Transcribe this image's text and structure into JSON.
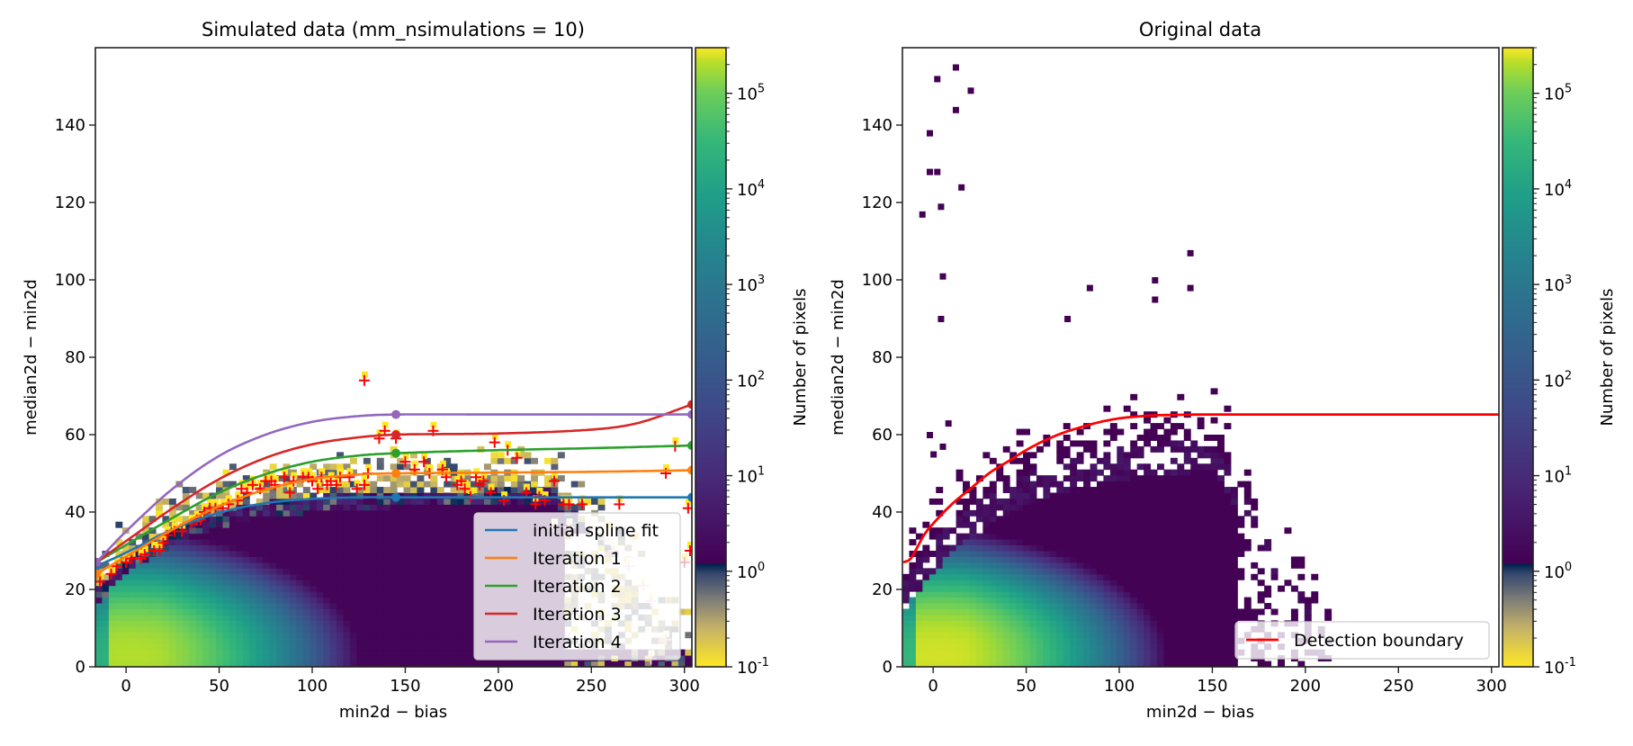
{
  "chart_data": [
    {
      "type": "heatmap",
      "title": "Simulated data (mm_nsimulations = 10)",
      "xlabel": "min2d − bias",
      "ylabel": "median2d − min2d",
      "xlim": [
        -16.5,
        304
      ],
      "ylim": [
        0,
        160
      ],
      "xticks": [
        0,
        50,
        100,
        150,
        200,
        250,
        300
      ],
      "yticks": [
        0,
        20,
        40,
        60,
        80,
        100,
        120,
        140
      ],
      "colorbar": {
        "label": "Number of pixels",
        "scale": "log",
        "range": [
          0.1,
          300000
        ],
        "ticks": [
          "10^-1",
          "10^0",
          "10^1",
          "10^2",
          "10^3",
          "10^4",
          "10^5"
        ],
        "colormap": "viridis with cividis-like low end (<1)"
      },
      "series": [
        {
          "name": "initial spline fit",
          "color": "#1f77b4",
          "knots_x": [
            -16,
            145,
            304
          ],
          "knots_y": [
            26,
            43.8,
            43.8
          ],
          "x": [
            -16,
            0,
            25,
            50,
            75,
            100,
            125,
            145,
            200,
            250,
            304
          ],
          "y": [
            26,
            29.5,
            35.5,
            39.8,
            42.3,
            43.4,
            43.8,
            43.8,
            43.8,
            43.8,
            43.8
          ]
        },
        {
          "name": "Iteration 1",
          "color": "#ff7f0e",
          "knots_x": [
            -16,
            145,
            304
          ],
          "knots_y": [
            24,
            50,
            50.8
          ],
          "x": [
            -16,
            0,
            25,
            50,
            75,
            100,
            125,
            145,
            200,
            250,
            304
          ],
          "y": [
            24,
            28.5,
            35.5,
            41.5,
            45.8,
            48.5,
            49.7,
            50,
            50.2,
            50.4,
            50.8
          ]
        },
        {
          "name": "Iteration 2",
          "color": "#2ca02c",
          "knots_x": [
            -16,
            145,
            304
          ],
          "knots_y": [
            27,
            55.2,
            57.2
          ],
          "x": [
            -16,
            0,
            25,
            50,
            75,
            100,
            125,
            145,
            200,
            250,
            304
          ],
          "y": [
            27,
            31.5,
            38.5,
            45,
            49.8,
            53,
            54.6,
            55.2,
            56,
            56.5,
            57.2
          ]
        },
        {
          "name": "Iteration 3",
          "color": "#d62728",
          "knots_x": [
            -16,
            145,
            304
          ],
          "knots_y": [
            27,
            60,
            67.8
          ],
          "x": [
            -16,
            0,
            25,
            50,
            75,
            100,
            125,
            145,
            200,
            250,
            275,
            304
          ],
          "y": [
            27,
            32.5,
            41,
            48.5,
            54,
            57.5,
            59.3,
            60,
            60.3,
            61.3,
            63,
            67.8
          ]
        },
        {
          "name": "Iteration 4",
          "color": "#9467bd",
          "knots_x": [
            -16,
            145,
            304
          ],
          "knots_y": [
            27,
            65.2,
            65.2
          ],
          "x": [
            -16,
            0,
            25,
            50,
            75,
            100,
            125,
            145,
            200,
            250,
            304
          ],
          "y": [
            27,
            35,
            46,
            54.5,
            60,
            63.3,
            64.8,
            65.2,
            65.2,
            65.2,
            65.2
          ]
        }
      ],
      "markers": {
        "symbol": "+",
        "color": "#ff0000",
        "points": [
          [
            -14,
            22
          ],
          [
            -8,
            24
          ],
          [
            -5,
            26
          ],
          [
            0,
            27
          ],
          [
            3,
            28
          ],
          [
            8,
            28
          ],
          [
            10,
            29
          ],
          [
            15,
            30
          ],
          [
            18,
            30
          ],
          [
            20,
            32
          ],
          [
            22,
            34
          ],
          [
            26,
            35
          ],
          [
            30,
            35
          ],
          [
            35,
            37
          ],
          [
            38,
            38
          ],
          [
            40,
            38
          ],
          [
            42,
            40
          ],
          [
            45,
            41
          ],
          [
            48,
            41
          ],
          [
            52,
            41
          ],
          [
            55,
            42
          ],
          [
            60,
            43
          ],
          [
            62,
            46
          ],
          [
            65,
            45
          ],
          [
            68,
            47
          ],
          [
            72,
            46
          ],
          [
            75,
            48
          ],
          [
            78,
            48
          ],
          [
            80,
            47
          ],
          [
            85,
            49
          ],
          [
            88,
            45
          ],
          [
            90,
            48
          ],
          [
            95,
            49
          ],
          [
            98,
            49
          ],
          [
            100,
            48
          ],
          [
            103,
            46
          ],
          [
            105,
            49
          ],
          [
            108,
            47
          ],
          [
            110,
            48
          ],
          [
            113,
            47
          ],
          [
            115,
            49
          ],
          [
            120,
            49
          ],
          [
            124,
            46
          ],
          [
            128,
            47
          ],
          [
            130,
            50
          ],
          [
            136,
            59
          ],
          [
            139,
            61
          ],
          [
            145,
            59
          ],
          [
            150,
            53
          ],
          [
            155,
            51
          ],
          [
            160,
            53
          ],
          [
            163,
            50
          ],
          [
            165,
            61
          ],
          [
            170,
            51
          ],
          [
            172,
            49
          ],
          [
            178,
            47
          ],
          [
            180,
            48
          ],
          [
            182,
            46
          ],
          [
            185,
            44
          ],
          [
            188,
            49
          ],
          [
            190,
            47
          ],
          [
            192,
            48
          ],
          [
            196,
            45
          ],
          [
            198,
            58
          ],
          [
            203,
            43
          ],
          [
            205,
            56
          ],
          [
            210,
            54
          ],
          [
            215,
            45
          ],
          [
            220,
            42
          ],
          [
            222,
            44
          ],
          [
            225,
            43
          ],
          [
            230,
            48
          ],
          [
            235,
            42
          ],
          [
            238,
            42
          ],
          [
            245,
            42
          ],
          [
            265,
            42
          ],
          [
            290,
            50
          ],
          [
            295,
            57
          ],
          [
            302,
            41
          ],
          [
            303,
            30
          ],
          [
            128,
            74
          ]
        ],
        "faded_points": [
          [
            230,
            36
          ],
          [
            238,
            36
          ],
          [
            250,
            35
          ],
          [
            257,
            33
          ],
          [
            262,
            30
          ],
          [
            270,
            26
          ],
          [
            278,
            21
          ],
          [
            282,
            17
          ],
          [
            290,
            7
          ],
          [
            300,
            27
          ],
          [
            282,
            2
          ]
        ]
      },
      "legend": {
        "placement": "lower-right",
        "entries": [
          "initial spline fit",
          "Iteration 1",
          "Iteration 2",
          "Iteration 3",
          "Iteration 4"
        ]
      }
    },
    {
      "type": "heatmap",
      "title": "Original data",
      "xlabel": "min2d − bias",
      "ylabel": "median2d − min2d",
      "xlim": [
        -16.5,
        304
      ],
      "ylim": [
        0,
        160
      ],
      "xticks": [
        0,
        50,
        100,
        150,
        200,
        250,
        300
      ],
      "yticks": [
        0,
        20,
        40,
        60,
        80,
        100,
        120,
        140
      ],
      "colorbar": {
        "label": "Number of pixels",
        "scale": "log",
        "range": [
          0.1,
          300000
        ],
        "ticks": [
          "10^-1",
          "10^0",
          "10^1",
          "10^2",
          "10^3",
          "10^4",
          "10^5"
        ]
      },
      "series": [
        {
          "name": "Detection boundary",
          "color": "#ff0000",
          "x": [
            -16,
            -12,
            -5,
            0,
            10,
            20,
            30,
            40,
            50,
            60,
            70,
            80,
            90,
            100,
            110,
            120,
            130,
            145,
            200,
            250,
            304
          ],
          "y": [
            27,
            28,
            34,
            37,
            42,
            46,
            50,
            53,
            56,
            58.5,
            60.5,
            62,
            63.3,
            64.2,
            64.7,
            65,
            65.1,
            65.2,
            65.2,
            65.2,
            65.2
          ]
        }
      ],
      "outliers": [
        [
          12,
          155
        ],
        [
          2,
          152
        ],
        [
          20,
          149
        ],
        [
          12,
          144
        ],
        [
          -2,
          138
        ],
        [
          -2,
          128
        ],
        [
          2,
          128
        ],
        [
          15,
          124
        ],
        [
          -6,
          117
        ],
        [
          4,
          119
        ],
        [
          5,
          101
        ],
        [
          4,
          90
        ],
        [
          138,
          107
        ],
        [
          119,
          100
        ],
        [
          138,
          98
        ],
        [
          119,
          95
        ],
        [
          72,
          90
        ],
        [
          -2,
          60
        ],
        [
          0,
          55
        ],
        [
          5,
          57
        ],
        [
          8,
          63
        ],
        [
          84,
          98
        ]
      ],
      "legend": {
        "placement": "lower-right",
        "entries": [
          "Detection boundary"
        ]
      }
    }
  ]
}
